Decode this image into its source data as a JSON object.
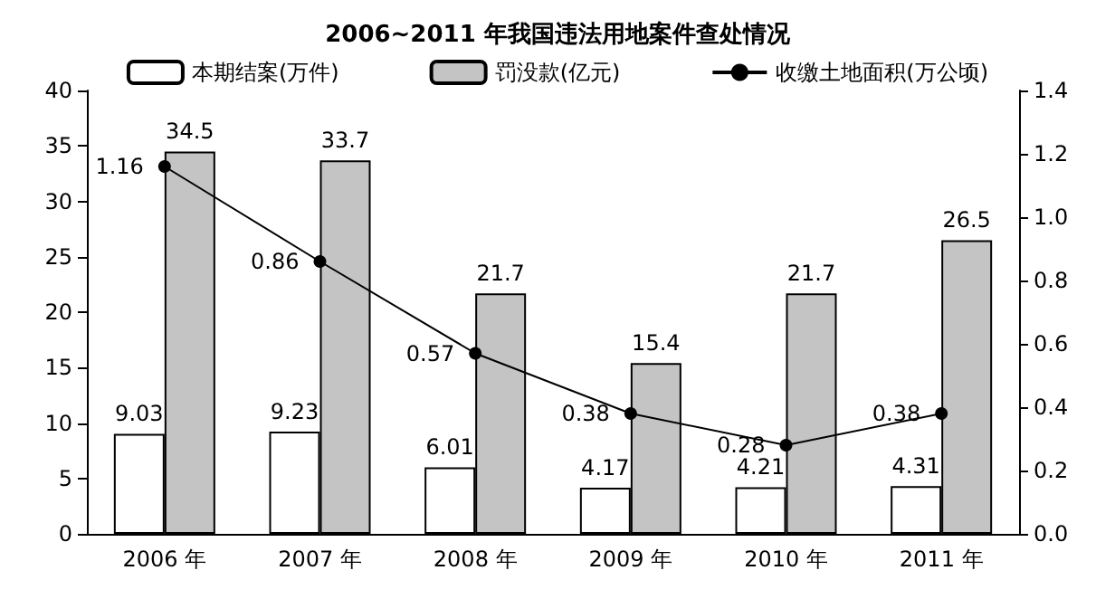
{
  "chart_data": {
    "type": "bar",
    "title": "2006~2011 年我国违法用地案件查处情况",
    "categories": [
      "2006 年",
      "2007 年",
      "2008 年",
      "2009 年",
      "2010 年",
      "2011 年"
    ],
    "series": [
      {
        "name": "本期结案(万件)",
        "color": "#ffffff",
        "values": [
          9.03,
          9.23,
          6.01,
          4.17,
          4.21,
          4.31
        ]
      },
      {
        "name": "罚没款(亿元)",
        "color": "#c4c4c4",
        "values": [
          34.5,
          33.7,
          21.7,
          15.4,
          21.7,
          26.5
        ]
      },
      {
        "name": "收缴土地面积(万公顷)",
        "type": "line",
        "axis": "y2",
        "color": "#000000",
        "values": [
          1.16,
          0.86,
          0.57,
          0.38,
          0.28,
          0.38
        ]
      }
    ],
    "ylim": [
      0,
      40
    ],
    "yticks": [
      0,
      5,
      10,
      15,
      20,
      25,
      30,
      35,
      40
    ],
    "y2lim": [
      0,
      1.4
    ],
    "y2ticks": [
      {
        "value": 0,
        "label": "0.0"
      },
      0.2,
      0.4,
      0.6,
      0.8,
      {
        "value": 1,
        "label": "1.0"
      },
      1.2,
      1.4
    ],
    "data_labels": true,
    "grid": false,
    "legend": "top",
    "marker": "circle",
    "line_style": "solid"
  }
}
